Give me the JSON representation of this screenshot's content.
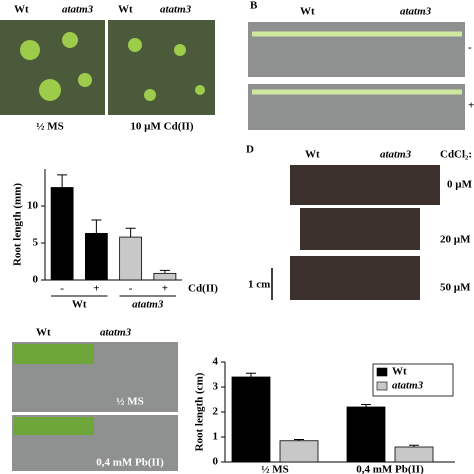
{
  "panel_a": {
    "photos": [
      {
        "wt": "Wt",
        "mutant": "atatm3",
        "condition": "½ MS"
      },
      {
        "wt": "Wt",
        "mutant": "atatm3",
        "condition": "10 µM Cd(II)"
      }
    ]
  },
  "panel_b": {
    "label": "B",
    "wt": "Wt",
    "mutant": "atatm3",
    "rows": [
      "-",
      "+"
    ]
  },
  "panel_d": {
    "label": "D",
    "wt": "Wt",
    "mutant": "atatm3",
    "treatment": "CdCl₂:",
    "rows": [
      "0 µM",
      "20 µM",
      "50 µM"
    ],
    "scale_bar": "1 cm"
  },
  "panel_e": {
    "wt": "Wt",
    "mutant": "atatm3",
    "rows": [
      "½ MS",
      "0,4 mM Pb(II)"
    ]
  },
  "chart_data": [
    {
      "type": "bar",
      "y_label": "Root length (mm)",
      "x_label": "Cd(II)",
      "categories": [
        "-",
        "+",
        "-",
        "+"
      ],
      "groups": [
        "Wt",
        "atatm3"
      ],
      "values": [
        12.5,
        6.3,
        5.8,
        0.9
      ],
      "errors": [
        1.7,
        1.8,
        1.2,
        0.4
      ],
      "colors": [
        "#000000",
        "#000000",
        "#c8c8c8",
        "#c8c8c8"
      ],
      "ylim": [
        0,
        15
      ],
      "yticks": [
        0,
        5,
        10
      ]
    },
    {
      "type": "bar",
      "y_label": "Root length (cm)",
      "categories": [
        "½ MS",
        "0,4 mM Pb(II)"
      ],
      "series": [
        {
          "name": "Wt",
          "color": "#000000",
          "values": [
            3.4,
            2.2
          ],
          "errors": [
            0.15,
            0.1
          ]
        },
        {
          "name": "atatm3",
          "color": "#c8c8c8",
          "values": [
            0.85,
            0.6
          ],
          "errors": [
            0.05,
            0.07
          ]
        }
      ],
      "ylim": [
        0,
        4
      ],
      "yticks": [
        0,
        1,
        2,
        3,
        4
      ],
      "legend": "upper right"
    }
  ]
}
